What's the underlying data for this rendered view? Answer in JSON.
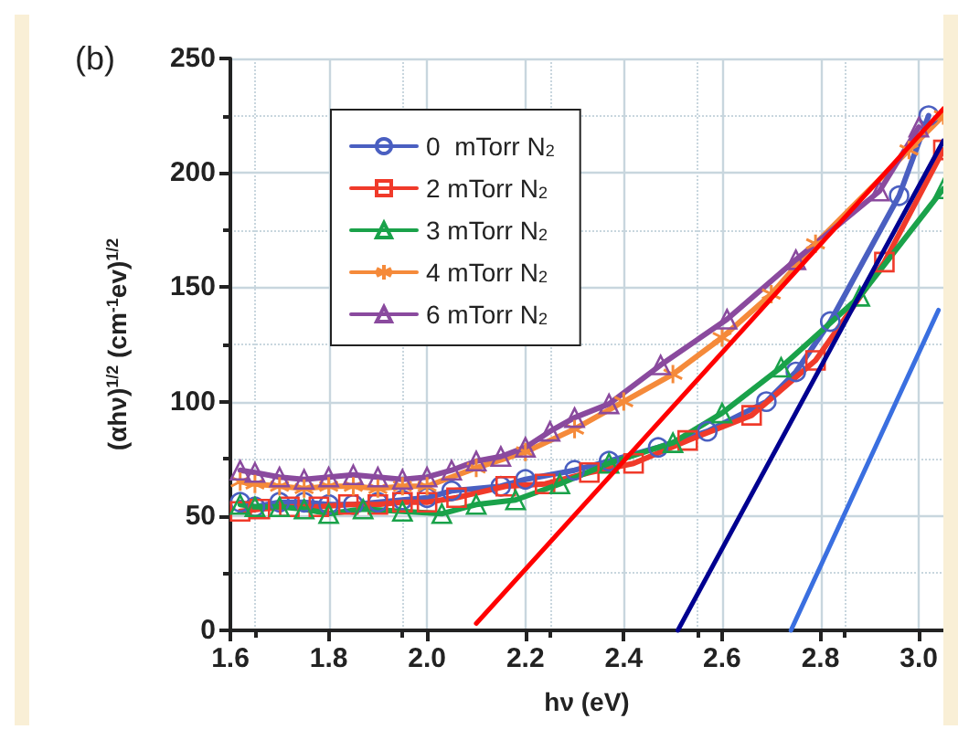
{
  "chart_data": {
    "type": "line",
    "title": "(b)",
    "xlabel": "hν (eV)",
    "ylabel": "(αhν)$^{1/2}$ (cm$^{-1}$ev)$^{1/2}$",
    "xlim": [
      1.6,
      3.05
    ],
    "ylim": [
      0,
      250
    ],
    "xticks": [
      1.6,
      1.8,
      {
        "value": 2,
        "label": "2.0"
      },
      2.2,
      2.4,
      2.6,
      2.8,
      {
        "value": 3,
        "label": "3.0"
      }
    ],
    "yticks": [
      0,
      50,
      100,
      150,
      200,
      250
    ],
    "grid": true,
    "legend": "top left",
    "series": [
      {
        "name": "0  mTorr N$_{2}$",
        "color": "#4a5fc1",
        "marker": "circle",
        "x": [
          1.62,
          1.65,
          1.7,
          1.75,
          1.8,
          1.85,
          1.9,
          1.95,
          2.0,
          2.05,
          2.15,
          2.2,
          2.3,
          2.37,
          2.47,
          2.57,
          2.69,
          2.75,
          2.82,
          2.96,
          3.02
        ],
        "values": [
          56,
          54,
          56,
          56,
          55,
          55,
          56,
          57,
          58,
          61,
          63,
          66,
          70,
          74,
          80,
          87,
          100,
          113,
          135,
          190,
          225
        ]
      },
      {
        "name": "2 mTorr N$_{2}$",
        "color": "#f03a2a",
        "marker": "square",
        "x": [
          1.62,
          1.66,
          1.72,
          1.78,
          1.84,
          1.9,
          1.95,
          2.0,
          2.06,
          2.16,
          2.24,
          2.33,
          2.42,
          2.53,
          2.66,
          2.79,
          2.93,
          3.05
        ],
        "values": [
          52,
          53,
          54,
          54,
          55,
          55,
          56,
          56,
          58,
          63,
          64,
          69,
          73,
          83,
          94,
          118,
          161,
          210
        ]
      },
      {
        "name": "3 mTorr N$_{2}$",
        "color": "#1aa24a",
        "marker": "triangle",
        "x": [
          1.62,
          1.65,
          1.7,
          1.75,
          1.8,
          1.87,
          1.95,
          2.03,
          2.1,
          2.18,
          2.27,
          2.37,
          2.5,
          2.6,
          2.72,
          2.88,
          3.05
        ],
        "values": [
          55,
          54,
          54,
          53,
          51,
          53,
          52,
          51,
          55,
          57,
          64,
          73,
          82,
          95,
          115,
          146,
          193
        ]
      },
      {
        "name": "4 mTorr N$_{2}$",
        "color": "#f58a3a",
        "marker": "cross",
        "x": [
          1.62,
          1.65,
          1.7,
          1.75,
          1.8,
          1.85,
          1.9,
          1.95,
          2.0,
          2.1,
          2.2,
          2.3,
          2.4,
          2.5,
          2.6,
          2.7,
          2.79,
          2.98,
          3.05
        ],
        "values": [
          65,
          64,
          63,
          62,
          63,
          63,
          62,
          63,
          63,
          71,
          78,
          88,
          100,
          112,
          128,
          147,
          169,
          210,
          225
        ]
      },
      {
        "name": "6 mTorr N$_{2}$",
        "color": "#8a4a9e",
        "marker": "triangle",
        "x": [
          1.62,
          1.65,
          1.7,
          1.75,
          1.8,
          1.85,
          1.9,
          1.95,
          2.0,
          2.05,
          2.1,
          2.15,
          2.2,
          2.25,
          2.3,
          2.37,
          2.475,
          2.61,
          2.75,
          2.92,
          3.0
        ],
        "values": [
          70,
          69,
          67,
          66,
          67,
          68,
          67,
          66,
          67,
          70,
          74,
          76,
          80,
          87,
          93,
          99,
          116,
          136,
          162,
          192,
          220
        ]
      },
      {
        "color": "#ff0000",
        "marker": "none",
        "x": [
          2.1,
          3.05
        ],
        "values": [
          3,
          228
        ]
      },
      {
        "color": "#000090",
        "marker": "none",
        "x": [
          2.51,
          3.05
        ],
        "values": [
          0,
          214
        ]
      },
      {
        "color": "#3a6fe0",
        "marker": "none",
        "x": [
          2.74,
          3.04
        ],
        "values": [
          0,
          140
        ]
      }
    ]
  }
}
